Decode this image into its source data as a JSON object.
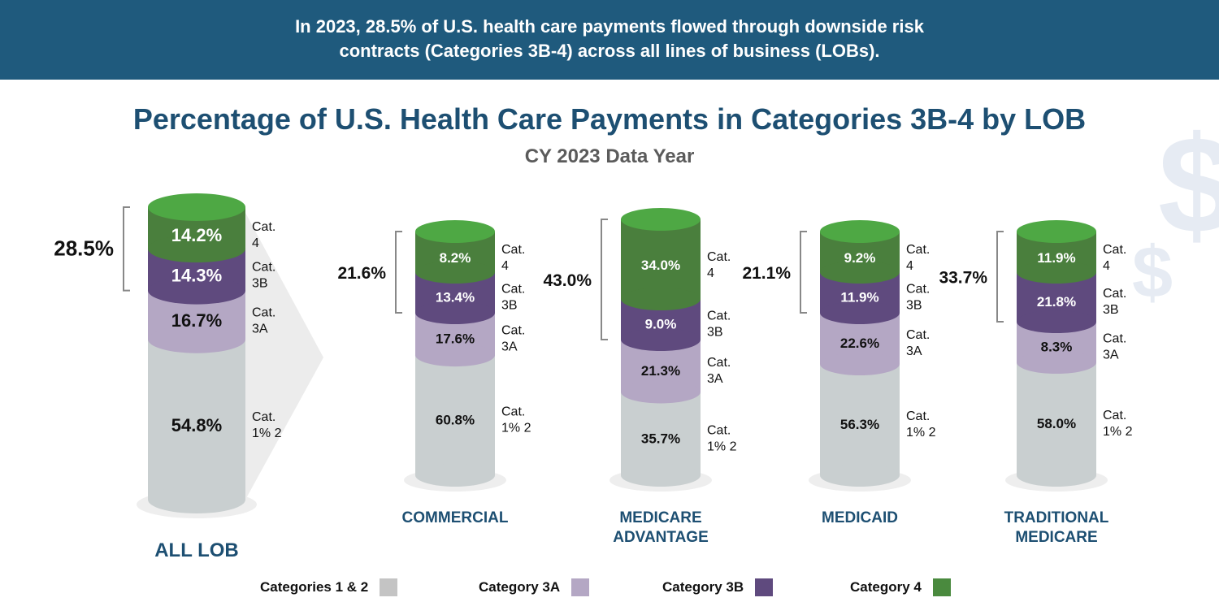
{
  "banner": {
    "line1": "In 2023, 28.5% of U.S. health care payments flowed through downside risk",
    "line2": "contracts (Categories 3B-4) across all lines of business (LOBs)."
  },
  "colors": {
    "banner": "#1f5a7d",
    "title": "#1d4f72",
    "cat12": "#c9cfd0",
    "cat3a": "#b4a7c4",
    "cat3b": "#5f4a7e",
    "cat4": "#4a7f3d",
    "cat4_top": "#4ea844"
  },
  "chart_data": {
    "type": "stacked-cylinder",
    "title": "Percentage of U.S. Health Care Payments in Categories 3B-4 by LOB",
    "subtitle": "CY 2023 Data Year",
    "segment_labels": [
      "Cat. 1% 2",
      "Cat. 3A",
      "Cat. 3B",
      "Cat. 4"
    ],
    "categories": [
      "ALL LOB",
      "COMMERCIAL",
      "MEDICARE ADVANTAGE",
      "MEDICAID",
      "TRADITIONAL MEDICARE"
    ],
    "series": [
      {
        "name": "Categories 1 & 2",
        "values": [
          54.8,
          60.8,
          35.7,
          56.3,
          58.0
        ]
      },
      {
        "name": "Category 3A",
        "values": [
          16.7,
          17.6,
          21.3,
          22.6,
          8.3
        ]
      },
      {
        "name": "Category 3B",
        "values": [
          14.3,
          13.4,
          9.0,
          11.9,
          21.8
        ]
      },
      {
        "name": "Category 4",
        "values": [
          14.2,
          8.2,
          34.0,
          9.2,
          11.9
        ]
      }
    ],
    "bracket_totals": [
      "28.5%",
      "21.6%",
      "43.0%",
      "21.1%",
      "33.7%"
    ]
  },
  "legend": [
    "Categories 1 & 2",
    "Category 3A",
    "Category 3B",
    "Category 4"
  ]
}
